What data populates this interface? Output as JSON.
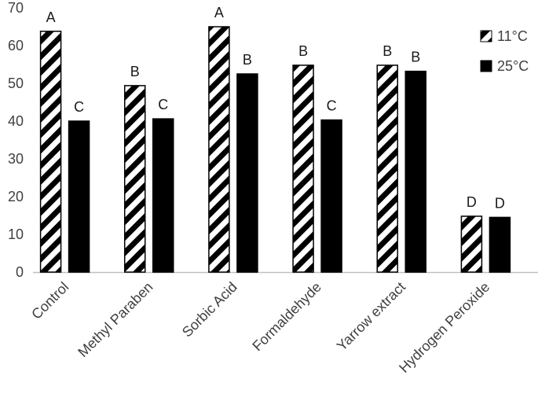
{
  "chart_data": {
    "type": "bar",
    "title": "",
    "xlabel": "",
    "ylabel": "",
    "ylim": [
      0,
      70
    ],
    "yticks": [
      0,
      10,
      20,
      30,
      40,
      50,
      60,
      70
    ],
    "grid": false,
    "legend_position": "top-right",
    "categories": [
      "Control",
      "Methyl Paraben",
      "Sorbic Acid",
      "Formaldehyde",
      "Yarrow extract",
      "Hydrogen Peroxide"
    ],
    "series": [
      {
        "name": "11°C",
        "pattern": "diagonal-stripes",
        "color": "#000000",
        "values": [
          63.8,
          49.4,
          65.0,
          54.8,
          54.8,
          14.8
        ],
        "labels": [
          "A",
          "B",
          "A",
          "B",
          "B",
          "D"
        ]
      },
      {
        "name": "25°C",
        "pattern": "solid",
        "color": "#000000",
        "values": [
          40.0,
          40.6,
          52.5,
          40.3,
          53.2,
          14.5
        ],
        "labels": [
          "C",
          "C",
          "B",
          "C",
          "B",
          "D"
        ]
      }
    ]
  }
}
